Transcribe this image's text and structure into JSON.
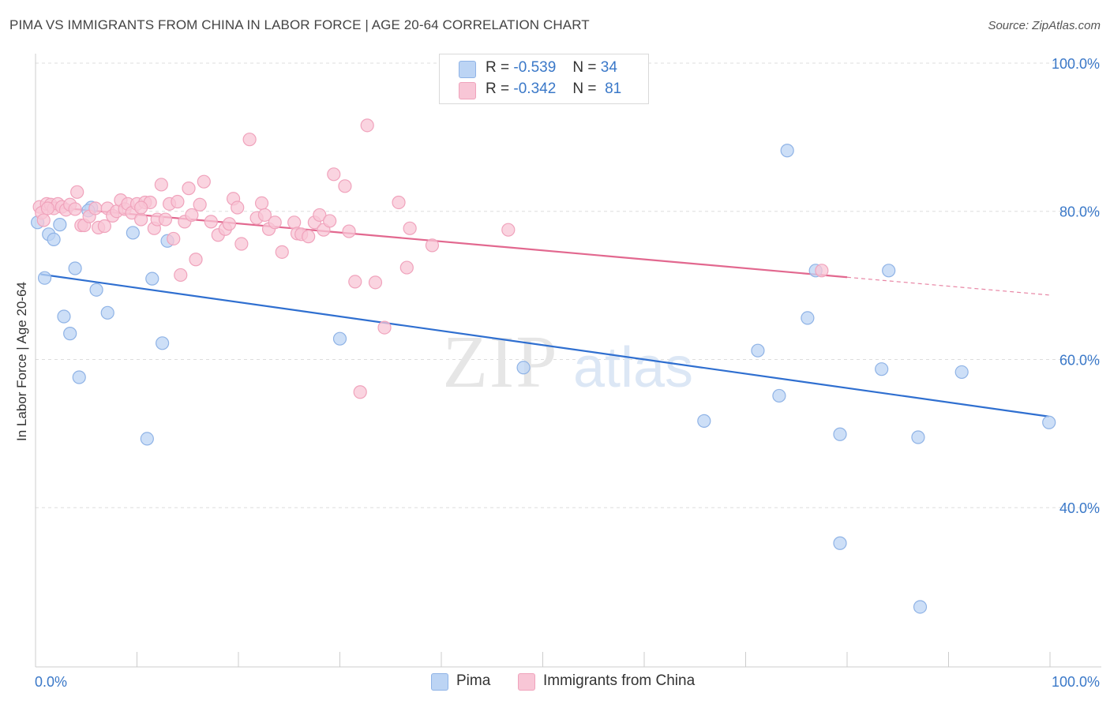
{
  "title": "PIMA VS IMMIGRANTS FROM CHINA IN LABOR FORCE | AGE 20-64 CORRELATION CHART",
  "source": "Source: ZipAtlas.com",
  "watermark": {
    "zip": "ZIP",
    "atlas": "atlas"
  },
  "legend": {
    "rows": [
      {
        "r_label": "R =",
        "r_value": "-0.539",
        "n_label": "N =",
        "n_value": "34"
      },
      {
        "r_label": "R =",
        "r_value": "-0.342",
        "n_label": "N =",
        "n_value": "81"
      }
    ]
  },
  "bottom_legend": {
    "items": [
      "Pima",
      "Immigrants from China"
    ]
  },
  "colors": {
    "pima_fill": "#bcd4f4",
    "pima_stroke": "#8fb3e6",
    "pima_line": "#2f6fd0",
    "china_fill": "#f8c6d6",
    "china_stroke": "#f0a3bc",
    "china_line": "#e2688f",
    "tick_label": "#3a78c8",
    "grid": "#dddddd"
  },
  "chart_data": {
    "type": "scatter",
    "title": "PIMA VS IMMIGRANTS FROM CHINA IN LABOR FORCE | AGE 20-64 CORRELATION CHART",
    "xlabel": "",
    "ylabel": "In Labor Force | Age 20-64",
    "xlim": [
      0,
      100
    ],
    "ylim": [
      18.5,
      100
    ],
    "x_tick_labels": [
      {
        "value": 0,
        "label": "0.0%"
      },
      {
        "value": 100,
        "label": "100.0%"
      }
    ],
    "y_tick_labels": [
      {
        "value": 40,
        "label": "40.0%"
      },
      {
        "value": 60,
        "label": "60.0%"
      },
      {
        "value": 80,
        "label": "80.0%"
      },
      {
        "value": 100,
        "label": "100.0%"
      }
    ],
    "grid": true,
    "legend_position": "top-center",
    "series": [
      {
        "name": "Pima",
        "points": [
          [
            0.2,
            78.5
          ],
          [
            1.3,
            76.9
          ],
          [
            1.8,
            76.2
          ],
          [
            2.4,
            78.2
          ],
          [
            0.9,
            71.0
          ],
          [
            3.9,
            72.3
          ],
          [
            2.8,
            65.8
          ],
          [
            3.4,
            63.5
          ],
          [
            4.3,
            57.6
          ],
          [
            5.5,
            80.5
          ],
          [
            6.0,
            69.4
          ],
          [
            7.1,
            66.3
          ],
          [
            9.6,
            77.1
          ],
          [
            11.0,
            49.3
          ],
          [
            11.5,
            70.9
          ],
          [
            12.5,
            62.2
          ],
          [
            13.0,
            76.0
          ],
          [
            30.0,
            62.8
          ],
          [
            48.1,
            58.9
          ],
          [
            65.9,
            51.7
          ],
          [
            71.2,
            61.2
          ],
          [
            73.3,
            55.1
          ],
          [
            74.1,
            88.2
          ],
          [
            76.9,
            72.0
          ],
          [
            76.1,
            65.6
          ],
          [
            79.3,
            49.9
          ],
          [
            79.3,
            35.2
          ],
          [
            84.1,
            72.0
          ],
          [
            83.4,
            58.7
          ],
          [
            87.0,
            49.5
          ],
          [
            87.2,
            26.6
          ],
          [
            91.3,
            58.3
          ],
          [
            99.9,
            51.5
          ],
          [
            5.2,
            80.1
          ]
        ],
        "trend": {
          "x": [
            0.5,
            99.9
          ],
          "y": [
            71.5,
            52.3
          ]
        }
      },
      {
        "name": "Immigrants from China",
        "points": [
          [
            0.4,
            80.6
          ],
          [
            0.6,
            79.8
          ],
          [
            0.8,
            78.8
          ],
          [
            1.1,
            81.0
          ],
          [
            1.5,
            80.9
          ],
          [
            1.8,
            80.4
          ],
          [
            2.2,
            81.0
          ],
          [
            2.6,
            80.6
          ],
          [
            3.0,
            80.2
          ],
          [
            3.4,
            80.9
          ],
          [
            3.9,
            80.3
          ],
          [
            4.1,
            82.6
          ],
          [
            4.5,
            78.1
          ],
          [
            4.8,
            78.1
          ],
          [
            5.3,
            79.3
          ],
          [
            5.9,
            80.4
          ],
          [
            6.2,
            77.8
          ],
          [
            6.8,
            78.0
          ],
          [
            7.1,
            80.4
          ],
          [
            7.6,
            79.4
          ],
          [
            8.0,
            80.0
          ],
          [
            8.4,
            81.5
          ],
          [
            8.8,
            80.3
          ],
          [
            9.1,
            81.0
          ],
          [
            9.5,
            79.8
          ],
          [
            10.0,
            81.0
          ],
          [
            10.4,
            78.9
          ],
          [
            10.8,
            81.2
          ],
          [
            11.3,
            81.2
          ],
          [
            11.7,
            77.7
          ],
          [
            12.0,
            78.9
          ],
          [
            12.4,
            83.6
          ],
          [
            12.8,
            78.9
          ],
          [
            13.2,
            81.0
          ],
          [
            13.6,
            76.3
          ],
          [
            14.0,
            81.3
          ],
          [
            14.3,
            71.4
          ],
          [
            14.7,
            78.6
          ],
          [
            15.1,
            83.1
          ],
          [
            15.4,
            79.5
          ],
          [
            15.8,
            73.5
          ],
          [
            16.2,
            80.9
          ],
          [
            16.6,
            84.0
          ],
          [
            17.3,
            78.6
          ],
          [
            18.0,
            76.8
          ],
          [
            18.7,
            77.6
          ],
          [
            19.1,
            78.3
          ],
          [
            19.5,
            81.7
          ],
          [
            19.9,
            80.5
          ],
          [
            20.3,
            75.6
          ],
          [
            21.1,
            89.7
          ],
          [
            21.8,
            79.1
          ],
          [
            22.3,
            81.1
          ],
          [
            22.6,
            79.5
          ],
          [
            23.0,
            77.6
          ],
          [
            23.6,
            78.5
          ],
          [
            24.3,
            74.5
          ],
          [
            25.5,
            78.5
          ],
          [
            25.8,
            77.0
          ],
          [
            26.2,
            76.9
          ],
          [
            26.9,
            76.6
          ],
          [
            27.5,
            78.5
          ],
          [
            28.0,
            79.5
          ],
          [
            28.4,
            77.5
          ],
          [
            29.0,
            78.7
          ],
          [
            29.4,
            85.0
          ],
          [
            30.5,
            83.4
          ],
          [
            30.9,
            77.3
          ],
          [
            31.5,
            70.5
          ],
          [
            32.7,
            91.6
          ],
          [
            33.5,
            70.4
          ],
          [
            34.4,
            64.3
          ],
          [
            35.8,
            81.2
          ],
          [
            36.6,
            72.4
          ],
          [
            36.9,
            77.7
          ],
          [
            39.1,
            75.4
          ],
          [
            32.0,
            55.6
          ],
          [
            46.6,
            77.5
          ],
          [
            77.5,
            72.0
          ],
          [
            1.2,
            80.4
          ],
          [
            10.4,
            80.5
          ]
        ],
        "trend": {
          "x": [
            0.5,
            80.0
          ],
          "y": [
            80.7,
            71.1
          ]
        },
        "trend_extension": {
          "x": [
            80.0,
            99.9
          ],
          "y": [
            71.1,
            68.7
          ]
        }
      }
    ]
  }
}
